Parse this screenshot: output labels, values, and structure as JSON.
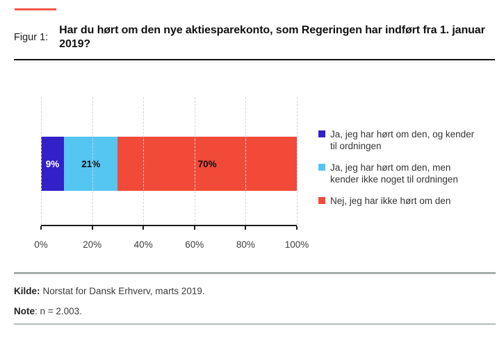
{
  "header": {
    "figure_label": "Figur 1:",
    "title": "Har du hørt om den nye aktiesparekonto, som Regeringen har indført fra 1. januar 2019?"
  },
  "chart_data": {
    "type": "bar",
    "orientation": "horizontal",
    "stacked": true,
    "xlim": [
      0,
      100
    ],
    "x_ticks": [
      "0%",
      "20%",
      "40%",
      "60%",
      "80%",
      "100%"
    ],
    "grid": "vertical-dashed",
    "legend_position": "right",
    "series": [
      {
        "name": "Ja, jeg har hørt om den, og kender til ordningen",
        "value": 9,
        "label": "9%",
        "color": "#3220c8",
        "label_color": "#ffffff"
      },
      {
        "name": "Ja, jeg har hørt om den, men kender ikke noget til ordningen",
        "value": 21,
        "label": "21%",
        "color": "#55c6f2",
        "label_color": "#111111"
      },
      {
        "name": "Nej, jeg har ikke hørt om den",
        "value": 70,
        "label": "70%",
        "color": "#f14a38",
        "label_color": "#111111"
      }
    ]
  },
  "footer": {
    "source_label": "Kilde:",
    "source_text": "Norstat for Dansk Erhverv, marts 2019.",
    "note_label": "Note",
    "note_text": ": n = 2.003."
  },
  "colors": {
    "accent_line": "#f2564a",
    "axis": "#1a1a1a",
    "gridline": "#d4d4d4"
  }
}
